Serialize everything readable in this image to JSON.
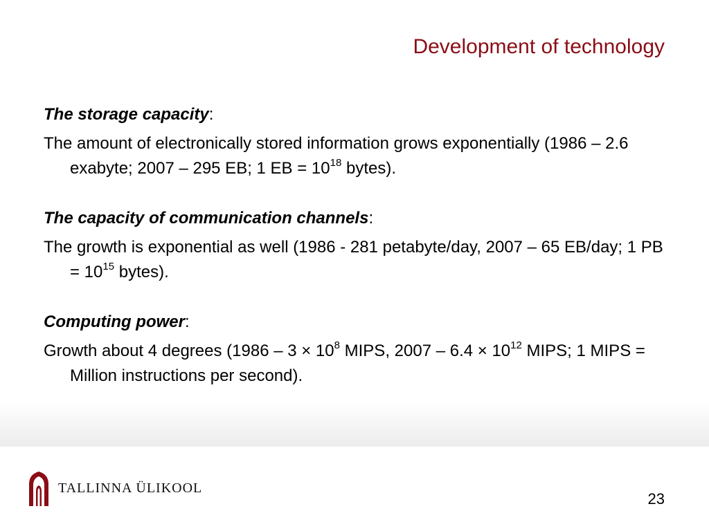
{
  "slide": {
    "title": "Development of technology",
    "page_number": "23"
  },
  "sections": [
    {
      "heading": "The storage capacity",
      "heading_suffix": ":",
      "body_parts": [
        "The amount of electronically stored information grows exponentially (1986 – 2.6 exabyte; 2007 – 295 EB; 1 EB = 10",
        "18",
        " bytes)."
      ]
    },
    {
      "heading": "The capacity of communication channels",
      "heading_suffix": ":",
      "body_parts": [
        "The growth is exponential as well (1986  - 281 petabyte/day, 2007 – 65 EB/day; 1 PB = 10",
        "15",
        " bytes)."
      ]
    },
    {
      "heading": "Computing power",
      "heading_suffix": ":",
      "body_parts": [
        "Growth about 4 degrees (1986 – 3 × 10",
        "8",
        " MIPS, 2007 – 6.4 × 10",
        "12",
        " MIPS; 1 MIPS = Million instructions per second)."
      ]
    }
  ],
  "footer": {
    "logo_text": "TALLINNA ÜLIKOOL",
    "logo_icon": "university-arch-logo-icon",
    "logo_color": "#8b0d16"
  },
  "colors": {
    "title": "#8b0d16",
    "text": "#000000"
  }
}
